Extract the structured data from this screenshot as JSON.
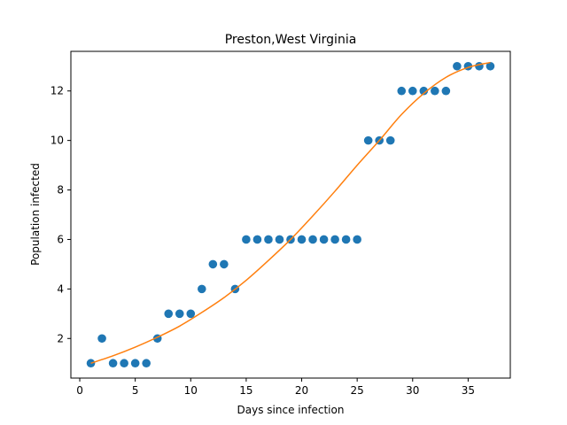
{
  "chart_data": {
    "type": "scatter",
    "title": "Preston,West Virginia",
    "xlabel": "Days since infection",
    "ylabel": "Population infected",
    "xlim": [
      -0.8,
      38.8
    ],
    "ylim": [
      0.4,
      13.6
    ],
    "xticks": [
      0,
      5,
      10,
      15,
      20,
      25,
      30,
      35
    ],
    "yticks": [
      2,
      4,
      6,
      8,
      10,
      12
    ],
    "grid": false,
    "colors": {
      "points": "#1f77b4",
      "fit": "#ff7f0e"
    },
    "series": [
      {
        "type": "scatter",
        "x": [
          1,
          2,
          3,
          4,
          5,
          6,
          7,
          8,
          9,
          10,
          11,
          12,
          13,
          14,
          15,
          16,
          17,
          18,
          19,
          20,
          21,
          22,
          23,
          24,
          25,
          26,
          27,
          28,
          29,
          30,
          31,
          32,
          33,
          34,
          35,
          36,
          37
        ],
        "y": [
          1,
          2,
          1,
          1,
          1,
          1,
          2,
          3,
          3,
          3,
          4,
          5,
          5,
          4,
          6,
          6,
          6,
          6,
          6,
          6,
          6,
          6,
          6,
          6,
          6,
          10,
          10,
          10,
          12,
          12,
          12,
          12,
          12,
          13,
          13,
          13,
          13
        ]
      },
      {
        "type": "line",
        "x": [
          1,
          3,
          5,
          7,
          9,
          11,
          13,
          15,
          17,
          19,
          21,
          23,
          25,
          27,
          29,
          31,
          33,
          35,
          37
        ],
        "y": [
          1.0,
          1.3,
          1.65,
          2.05,
          2.5,
          3.05,
          3.65,
          4.35,
          5.15,
          6.0,
          6.95,
          7.95,
          9.0,
          10.0,
          11.05,
          11.9,
          12.55,
          12.95,
          13.15
        ]
      }
    ]
  }
}
